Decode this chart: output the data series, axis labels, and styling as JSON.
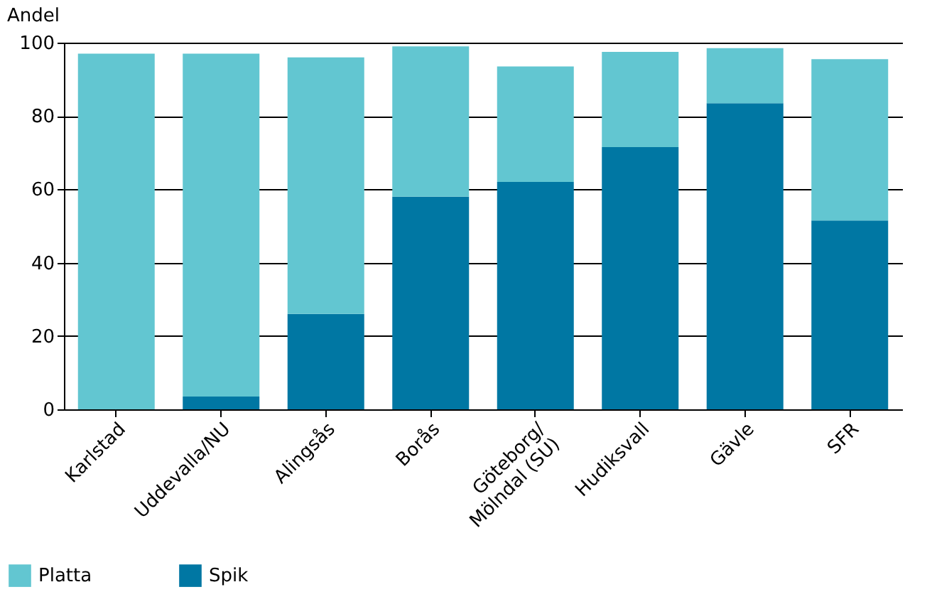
{
  "chart_data": {
    "type": "bar",
    "stacked": true,
    "ylabel": "Andel",
    "categories": [
      "Karlstad",
      "Uddevalla/NU",
      "Alingsås",
      "Borås",
      "Göteborg/\nMölndal (SU)",
      "Hudiksvall",
      "Gävle",
      "SFR"
    ],
    "series": [
      {
        "name": "Spik",
        "color": "#0077a3",
        "values": [
          0,
          3.5,
          26,
          58,
          62,
          71.5,
          83.5,
          51.5
        ]
      },
      {
        "name": "Platta",
        "color": "#62c6d1",
        "values": [
          97,
          93.5,
          70,
          41,
          31.5,
          26,
          15,
          44
        ]
      }
    ],
    "ylim": [
      0,
      100
    ],
    "yticks": [
      0,
      20,
      40,
      60,
      80,
      100
    ],
    "grid": "y",
    "legend": "bottom left"
  }
}
